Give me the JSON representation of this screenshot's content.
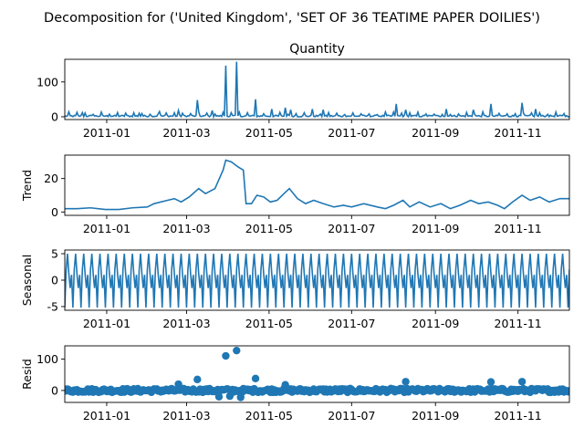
{
  "suptitle": "Decomposition for ('United Kingdom', 'SET OF 36 TEATIME PAPER DOILIES')",
  "colors": {
    "series": "#1f77b4",
    "axis": "#000000",
    "background": "#ffffff"
  },
  "x_range": [
    "2010-12-01",
    "2011-12-09"
  ],
  "x_ticks": [
    "2011-01-01",
    "2011-03-01",
    "2011-05-01",
    "2011-07-01",
    "2011-09-01",
    "2011-11-01"
  ],
  "x_tick_labels": [
    "2011-01",
    "2011-03",
    "2011-05",
    "2011-07",
    "2011-09",
    "2011-11"
  ],
  "chart_data": [
    {
      "type": "line",
      "title": "Quantity",
      "ylabel": "",
      "ylim": [
        -8,
        165
      ],
      "yticks": [
        0,
        100
      ],
      "baseline": 2,
      "noise": 2.5,
      "spike_every": 6,
      "spike_value": 10,
      "peaks": [
        {
          "x": "2010-12-14",
          "y": 12
        },
        {
          "x": "2011-01-25",
          "y": 10
        },
        {
          "x": "2011-02-09",
          "y": 15
        },
        {
          "x": "2011-02-23",
          "y": 18
        },
        {
          "x": "2011-03-09",
          "y": 48
        },
        {
          "x": "2011-03-20",
          "y": 18
        },
        {
          "x": "2011-03-30",
          "y": 147
        },
        {
          "x": "2011-04-07",
          "y": 158
        },
        {
          "x": "2011-04-21",
          "y": 50
        },
        {
          "x": "2011-05-03",
          "y": 22
        },
        {
          "x": "2011-05-13",
          "y": 26
        },
        {
          "x": "2011-05-17",
          "y": 20
        },
        {
          "x": "2011-06-02",
          "y": 22
        },
        {
          "x": "2011-06-10",
          "y": 20
        },
        {
          "x": "2011-08-03",
          "y": 37
        },
        {
          "x": "2011-08-10",
          "y": 20
        },
        {
          "x": "2011-09-09",
          "y": 22
        },
        {
          "x": "2011-09-29",
          "y": 20
        },
        {
          "x": "2011-10-12",
          "y": 37
        },
        {
          "x": "2011-11-04",
          "y": 40
        },
        {
          "x": "2011-11-14",
          "y": 22
        }
      ]
    },
    {
      "type": "line",
      "title": "",
      "ylabel": "Trend",
      "ylim": [
        -2,
        34
      ],
      "yticks": [
        0,
        20
      ],
      "points": [
        [
          "2010-12-01",
          2
        ],
        [
          "2010-12-10",
          2
        ],
        [
          "2010-12-20",
          2.5
        ],
        [
          "2010-12-31",
          1.5
        ],
        [
          "2011-01-10",
          1.5
        ],
        [
          "2011-01-20",
          2.5
        ],
        [
          "2011-01-31",
          3
        ],
        [
          "2011-02-05",
          5
        ],
        [
          "2011-02-15",
          7
        ],
        [
          "2011-02-20",
          8
        ],
        [
          "2011-02-25",
          6
        ],
        [
          "2011-03-03",
          9
        ],
        [
          "2011-03-10",
          14
        ],
        [
          "2011-03-15",
          11
        ],
        [
          "2011-03-22",
          14
        ],
        [
          "2011-03-28",
          25
        ],
        [
          "2011-03-30",
          31
        ],
        [
          "2011-04-03",
          30
        ],
        [
          "2011-04-08",
          27
        ],
        [
          "2011-04-12",
          25
        ],
        [
          "2011-04-14",
          5
        ],
        [
          "2011-04-18",
          5
        ],
        [
          "2011-04-22",
          10
        ],
        [
          "2011-04-27",
          9
        ],
        [
          "2011-05-02",
          6
        ],
        [
          "2011-05-07",
          7
        ],
        [
          "2011-05-12",
          11
        ],
        [
          "2011-05-16",
          14
        ],
        [
          "2011-05-22",
          8
        ],
        [
          "2011-05-28",
          5
        ],
        [
          "2011-06-03",
          7
        ],
        [
          "2011-06-10",
          5
        ],
        [
          "2011-06-18",
          3
        ],
        [
          "2011-06-25",
          4
        ],
        [
          "2011-07-01",
          3
        ],
        [
          "2011-07-10",
          5
        ],
        [
          "2011-07-20",
          3
        ],
        [
          "2011-07-26",
          2
        ],
        [
          "2011-08-01",
          4
        ],
        [
          "2011-08-08",
          7
        ],
        [
          "2011-08-13",
          3
        ],
        [
          "2011-08-20",
          6
        ],
        [
          "2011-08-28",
          3
        ],
        [
          "2011-09-05",
          5
        ],
        [
          "2011-09-12",
          2
        ],
        [
          "2011-09-19",
          4
        ],
        [
          "2011-09-27",
          7
        ],
        [
          "2011-10-03",
          5
        ],
        [
          "2011-10-10",
          6
        ],
        [
          "2011-10-17",
          4
        ],
        [
          "2011-10-22",
          2
        ],
        [
          "2011-10-28",
          6
        ],
        [
          "2011-11-04",
          10
        ],
        [
          "2011-11-10",
          7
        ],
        [
          "2011-11-17",
          9
        ],
        [
          "2011-11-24",
          6
        ],
        [
          "2011-12-02",
          8
        ],
        [
          "2011-12-09",
          8
        ]
      ]
    },
    {
      "type": "line",
      "title": "",
      "ylabel": "Seasonal",
      "ylim": [
        -5.7,
        5.7
      ],
      "yticks": [
        -5,
        0,
        5
      ],
      "period_days": 6,
      "pattern": [
        -5.2,
        2.0,
        5.0,
        1.2,
        -1.5,
        1.0
      ]
    },
    {
      "type": "scatter",
      "title": "",
      "ylabel": "Resid",
      "ylim": [
        -38,
        142
      ],
      "yticks": [
        0,
        100
      ],
      "noise": 6,
      "outliers": [
        {
          "x": "2011-03-09",
          "y": 35
        },
        {
          "x": "2011-03-30",
          "y": 110
        },
        {
          "x": "2011-04-07",
          "y": 127
        },
        {
          "x": "2011-04-21",
          "y": 38
        },
        {
          "x": "2011-03-25",
          "y": -20
        },
        {
          "x": "2011-04-02",
          "y": -18
        },
        {
          "x": "2011-04-10",
          "y": -22
        },
        {
          "x": "2011-08-10",
          "y": 28
        },
        {
          "x": "2011-10-12",
          "y": 27
        },
        {
          "x": "2011-11-04",
          "y": 28
        },
        {
          "x": "2011-02-23",
          "y": 20
        },
        {
          "x": "2011-05-13",
          "y": 18
        }
      ]
    }
  ]
}
